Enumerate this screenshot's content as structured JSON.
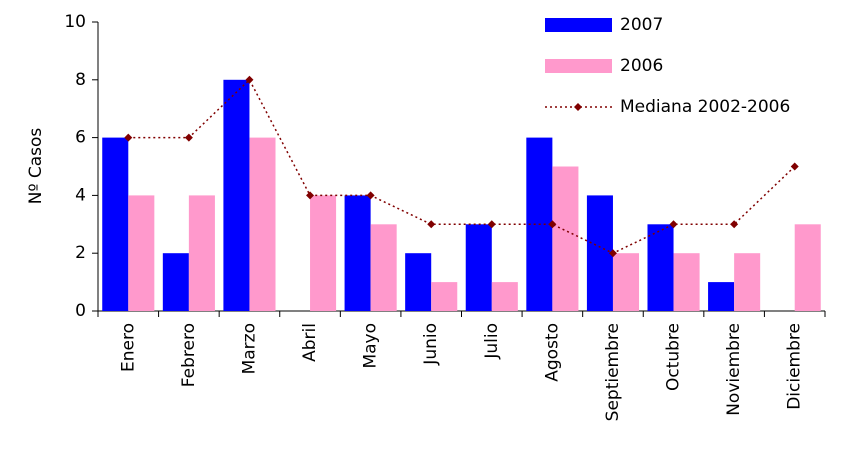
{
  "chart_data": {
    "type": "bar",
    "y_label": "Nº Casos",
    "categories": [
      "Enero",
      "Febrero",
      "Marzo",
      "Abril",
      "Mayo",
      "Junio",
      "Julio",
      "Agosto",
      "Septiembre",
      "Octubre",
      "Noviembre",
      "Diciembre"
    ],
    "series": [
      {
        "name": "2007",
        "color": "#0000ff",
        "values": [
          6,
          2,
          8,
          0,
          4,
          2,
          3,
          6,
          4,
          3,
          1,
          0
        ]
      },
      {
        "name": "2006",
        "color": "#ff99cc",
        "values": [
          4,
          4,
          6,
          4,
          3,
          1,
          1,
          5,
          2,
          2,
          2,
          3
        ]
      },
      {
        "name": "Mediana 2002-2006",
        "type": "line",
        "color": "#800000",
        "values": [
          6,
          6,
          8,
          4,
          4,
          3,
          3,
          3,
          2,
          3,
          3,
          5
        ]
      }
    ],
    "ylim": [
      0,
      10
    ],
    "yticks": [
      0,
      2,
      4,
      6,
      8,
      10
    ],
    "legend": "top-right"
  }
}
